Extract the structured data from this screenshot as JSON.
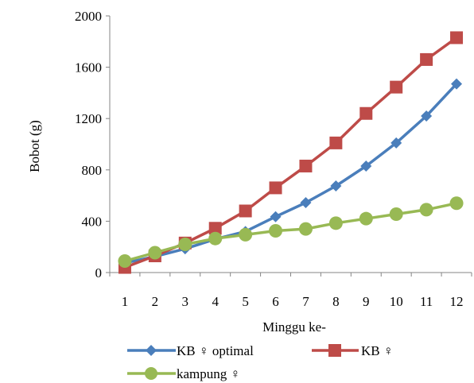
{
  "chart_data": {
    "type": "line",
    "title": "",
    "xlabel": "Minggu ke-",
    "ylabel": "Bobot (g)",
    "x": [
      1,
      2,
      3,
      4,
      5,
      6,
      7,
      8,
      9,
      10,
      11,
      12
    ],
    "ylim": [
      0,
      2000
    ],
    "yticks": [
      0,
      400,
      800,
      1200,
      1600,
      2000
    ],
    "grid": false,
    "legend_position": "bottom",
    "series": [
      {
        "name": "KB ♀ optimal",
        "color": "#4a7ebb",
        "marker": "diamond",
        "values": [
          75,
          125,
          185,
          260,
          320,
          435,
          545,
          675,
          830,
          1010,
          1220,
          1470
        ]
      },
      {
        "name": "KB ♀",
        "color": "#be4b48",
        "marker": "square",
        "values": [
          40,
          130,
          230,
          345,
          480,
          660,
          830,
          1010,
          1240,
          1445,
          1660,
          1830
        ]
      },
      {
        "name": "kampung ♀",
        "color": "#98b954",
        "marker": "circle",
        "values": [
          90,
          155,
          220,
          265,
          295,
          325,
          340,
          385,
          420,
          455,
          490,
          540
        ]
      }
    ]
  }
}
